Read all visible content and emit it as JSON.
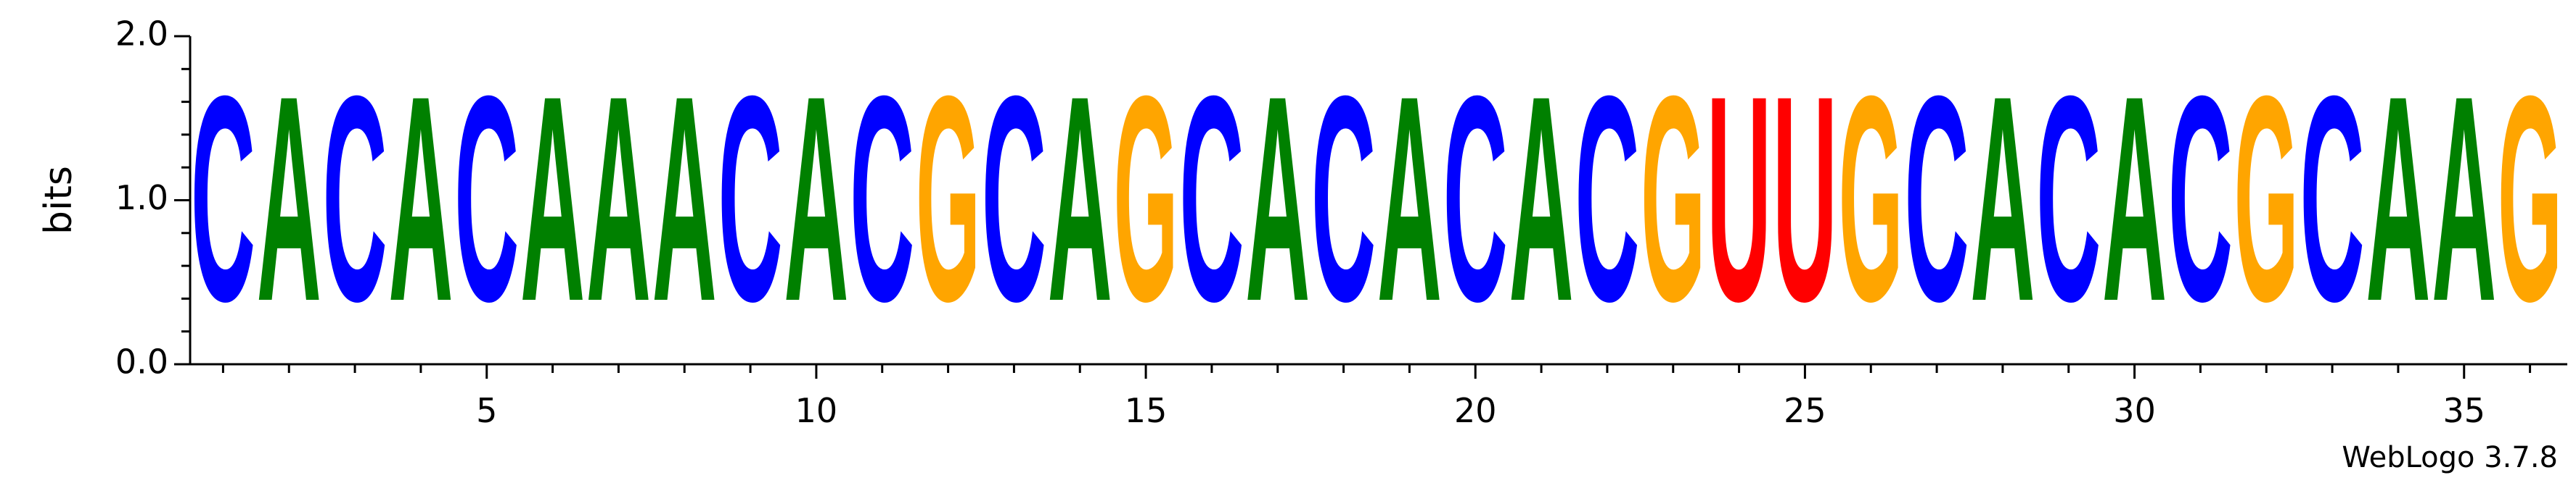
{
  "chart_data": {
    "type": "sequence-logo",
    "ylabel": "bits",
    "ylim": [
      0,
      2.0
    ],
    "y_ticks": [
      {
        "value": 0.0,
        "label": "0.0"
      },
      {
        "value": 1.0,
        "label": "1.0"
      },
      {
        "value": 2.0,
        "label": "2.0"
      }
    ],
    "y_minor_step": 0.2,
    "x_ticks": [
      {
        "value": 5,
        "label": "5"
      },
      {
        "value": 10,
        "label": "10"
      },
      {
        "value": 15,
        "label": "15"
      },
      {
        "value": 20,
        "label": "20"
      },
      {
        "value": 25,
        "label": "25"
      },
      {
        "value": 30,
        "label": "30"
      },
      {
        "value": 35,
        "label": "35"
      }
    ],
    "positions": [
      1,
      2,
      3,
      4,
      5,
      6,
      7,
      8,
      9,
      10,
      11,
      12,
      13,
      14,
      15,
      16,
      17,
      18,
      19,
      20,
      21,
      22,
      23,
      24,
      25,
      26,
      27,
      28,
      29,
      30,
      31,
      32,
      33,
      34,
      35,
      36
    ],
    "sequence": [
      "C",
      "A",
      "C",
      "A",
      "C",
      "A",
      "A",
      "A",
      "C",
      "A",
      "C",
      "G",
      "C",
      "A",
      "G",
      "C",
      "A",
      "C",
      "A",
      "C",
      "A",
      "C",
      "G",
      "U",
      "U",
      "G",
      "C",
      "A",
      "C",
      "A",
      "C",
      "G",
      "C",
      "A",
      "A",
      "G"
    ],
    "bits": [
      2.0,
      2.0,
      2.0,
      2.0,
      2.0,
      2.0,
      2.0,
      2.0,
      2.0,
      2.0,
      2.0,
      2.0,
      2.0,
      2.0,
      2.0,
      2.0,
      2.0,
      2.0,
      2.0,
      2.0,
      2.0,
      2.0,
      2.0,
      2.0,
      2.0,
      2.0,
      2.0,
      2.0,
      2.0,
      2.0,
      2.0,
      2.0,
      2.0,
      2.0,
      2.0,
      2.0
    ],
    "colors": {
      "A": "#008000",
      "C": "#0000ff",
      "G": "#ffa500",
      "U": "#ff0000"
    }
  },
  "footer": {
    "credit": "WebLogo 3.7.8"
  }
}
